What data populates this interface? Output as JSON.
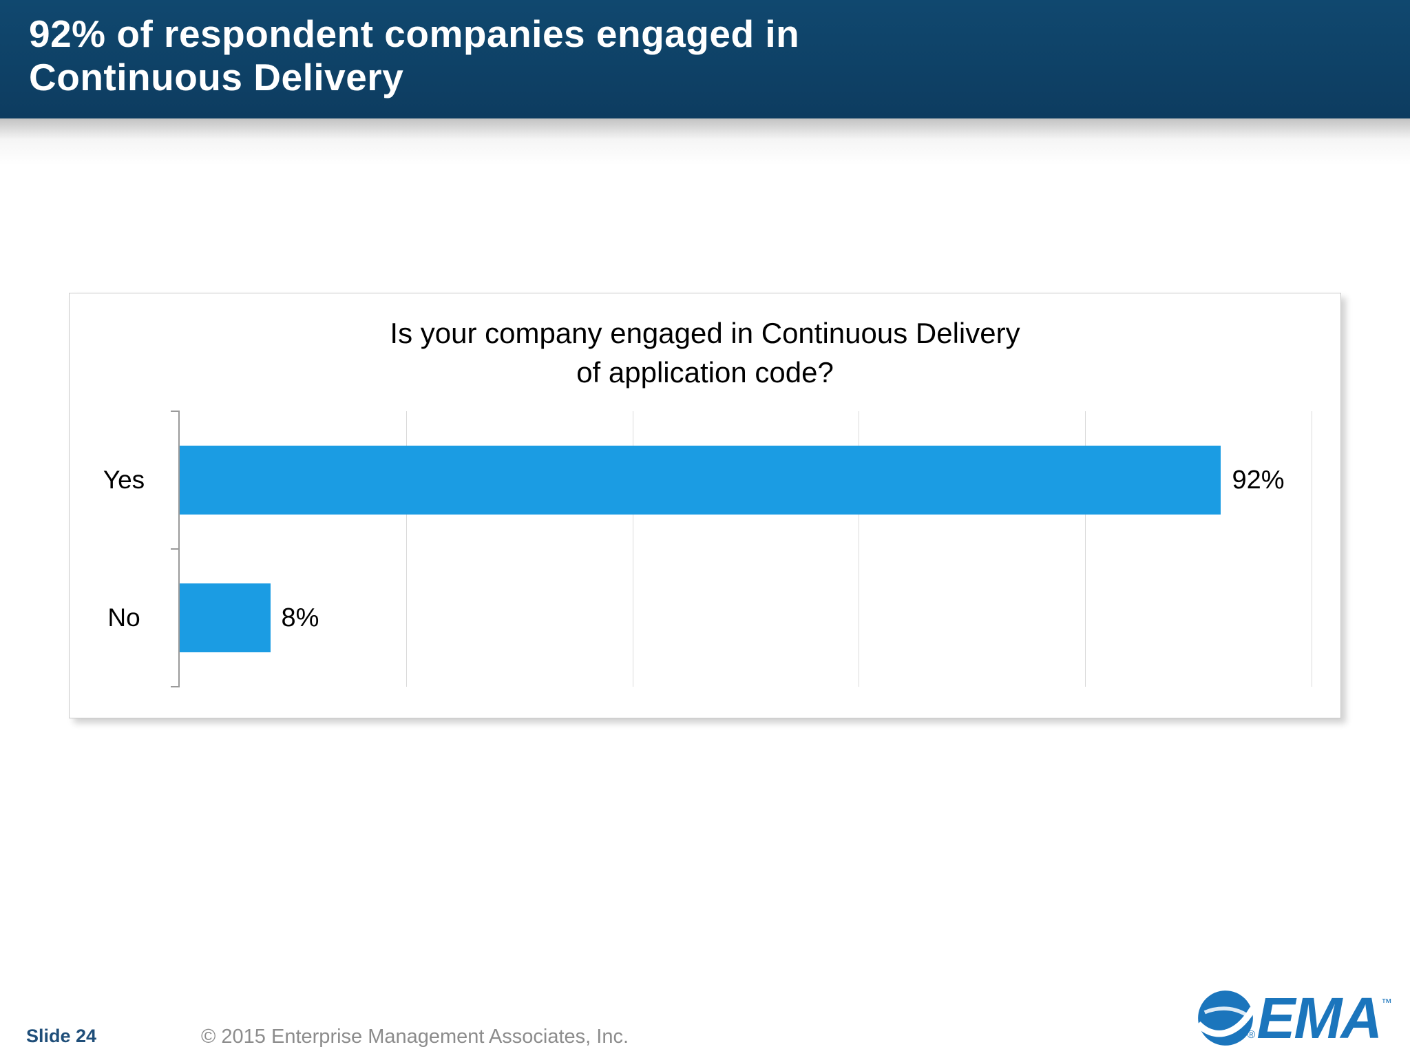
{
  "slide": {
    "title": "92% of respondent companies engaged in Continuous Delivery",
    "footer": {
      "slide_number": "Slide 24",
      "copyright": "© 2015 Enterprise Management Associates, Inc."
    },
    "logo": {
      "text": "EMA",
      "registered": "®",
      "trademark": "™",
      "color": "#1b75bc"
    }
  },
  "colors": {
    "header_background": "#0d3c60",
    "bar_blue": "#1b9ce3",
    "slide_number_blue": "#1f4e79",
    "copyright_gray": "#8c8c8c"
  },
  "chart_data": {
    "type": "bar",
    "orientation": "horizontal",
    "title": "Is your company engaged in Continuous Delivery\nof application code?",
    "categories": [
      "Yes",
      "No"
    ],
    "values": [
      92,
      8
    ],
    "value_labels": [
      "92%",
      "8%"
    ],
    "xlabel": "",
    "ylabel": "",
    "xlim": [
      0,
      100
    ],
    "gridlines": [
      20,
      40,
      60,
      80,
      100
    ],
    "bar_color": "#1b9ce3",
    "legend": "none",
    "grid": "vertical-only"
  }
}
